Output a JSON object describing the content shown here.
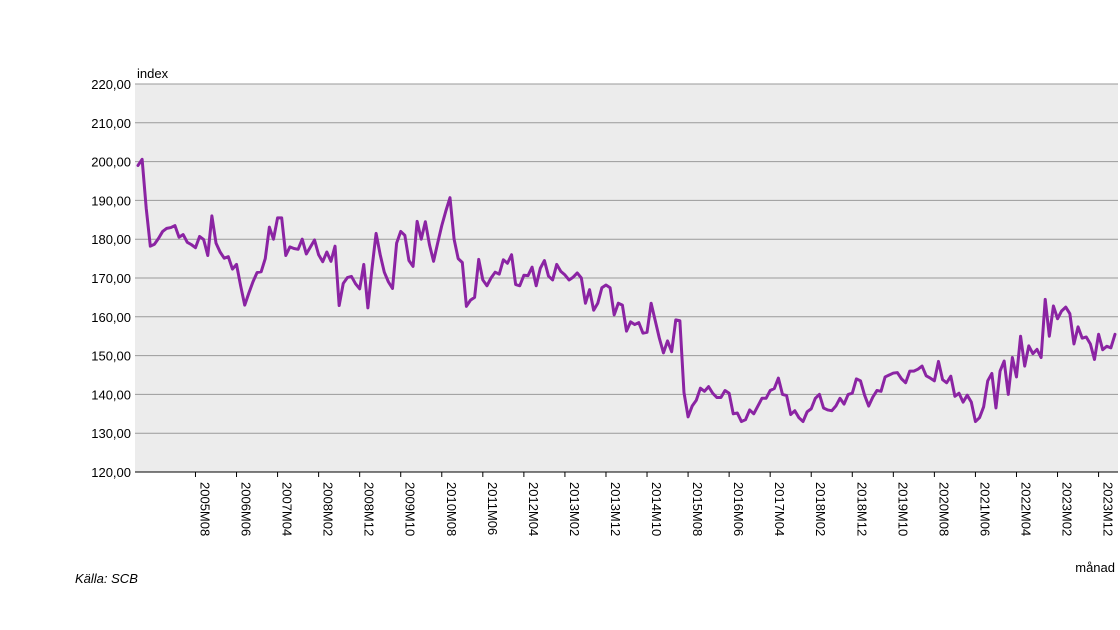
{
  "source": "Källa: SCB",
  "chart_data": {
    "type": "line",
    "title": "",
    "ylabel": "index",
    "xlabel": "månad",
    "ylim": [
      120,
      220
    ],
    "yticks": [
      "120,00",
      "130,00",
      "140,00",
      "150,00",
      "160,00",
      "170,00",
      "180,00",
      "190,00",
      "200,00",
      "210,00",
      "220,00"
    ],
    "xtick_labels": [
      "2005M08",
      "2006M06",
      "2007M04",
      "2008M02",
      "2008M12",
      "2009M10",
      "2010M08",
      "2011M06",
      "2012M04",
      "2013M02",
      "2013M12",
      "2014M10",
      "2015M08",
      "2016M06",
      "2017M04",
      "2018M02",
      "2018M12",
      "2019M10",
      "2020M08",
      "2021M06",
      "2022M04",
      "2023M02",
      "2023M12"
    ],
    "grid": true,
    "line_color": "#8B24A3",
    "plot_background": "#ececec",
    "series": [
      {
        "values": [
          199.0,
          200.6,
          188.0,
          178.2,
          178.7,
          180.2,
          182.0,
          182.8,
          183.0,
          183.5,
          180.5,
          181.2,
          179.2,
          178.6,
          177.8,
          180.7,
          179.9,
          175.8,
          186.0,
          179.0,
          176.7,
          175.1,
          175.5,
          172.3,
          173.5,
          168.0,
          163.0,
          166.1,
          169.0,
          171.4,
          171.6,
          175.0,
          183.1,
          180.0,
          185.5,
          185.5,
          175.8,
          178.0,
          177.6,
          177.4,
          180.0,
          176.2,
          178.0,
          179.8,
          176.0,
          174.2,
          176.7,
          174.3,
          178.2,
          162.9,
          168.6,
          170.1,
          170.4,
          168.5,
          167.2,
          173.5,
          162.3,
          172.5,
          181.5,
          176.0,
          171.5,
          169.0,
          167.3,
          179.0,
          182.0,
          181.0,
          174.5,
          173.0,
          184.6,
          180.0,
          184.5,
          178.6,
          174.3,
          179.0,
          183.5,
          187.3,
          190.7,
          180.0,
          175.0,
          174.0,
          162.7,
          164.3,
          165.0,
          174.8,
          169.5,
          168.0,
          170.0,
          171.5,
          171.0,
          174.7,
          173.8,
          176.0,
          168.3,
          168.0,
          170.7,
          170.6,
          172.8,
          168.0,
          172.5,
          174.5,
          170.5,
          169.5,
          173.5,
          171.7,
          170.8,
          169.5,
          170.2,
          171.3,
          170.0,
          163.5,
          167.0,
          161.7,
          163.5,
          167.5,
          168.2,
          167.5,
          160.5,
          163.5,
          163.0,
          156.3,
          158.7,
          158.0,
          158.5,
          155.8,
          156.0,
          163.5,
          159.0,
          154.5,
          150.7,
          153.8,
          151.0,
          159.2,
          159.0,
          140.5,
          134.2,
          137.0,
          138.5,
          141.6,
          140.8,
          142.0,
          140.3,
          139.2,
          139.2,
          141.0,
          140.3,
          135.0,
          135.2,
          133.0,
          133.5,
          136.0,
          135.0,
          137.0,
          139.0,
          139.0,
          141.0,
          141.5,
          144.2,
          140.0,
          139.7,
          134.8,
          135.8,
          134.0,
          133.0,
          135.5,
          136.3,
          139.0,
          140.0,
          136.5,
          136.0,
          135.8,
          137.0,
          139.0,
          137.5,
          140.0,
          140.3,
          144.0,
          143.5,
          139.8,
          137.0,
          139.3,
          141.0,
          140.8,
          144.5,
          145.0,
          145.5,
          145.6,
          144.0,
          143.0,
          146.0,
          146.0,
          146.5,
          147.3,
          144.8,
          144.2,
          143.5,
          148.5,
          143.8,
          143.0,
          144.7,
          139.5,
          140.3,
          138.0,
          139.8,
          138.0,
          133.0,
          134.0,
          136.8,
          143.5,
          145.4,
          136.5,
          146.0,
          148.6,
          140.0,
          149.5,
          144.5,
          155.0,
          147.3,
          152.5,
          150.5,
          151.6,
          149.5,
          164.5,
          155.0,
          162.8,
          159.5,
          161.5,
          162.5,
          160.8,
          153.0,
          157.4,
          154.5,
          154.8,
          153.0,
          149.0,
          155.5,
          151.5,
          152.4,
          152.0,
          155.5
        ]
      }
    ]
  }
}
